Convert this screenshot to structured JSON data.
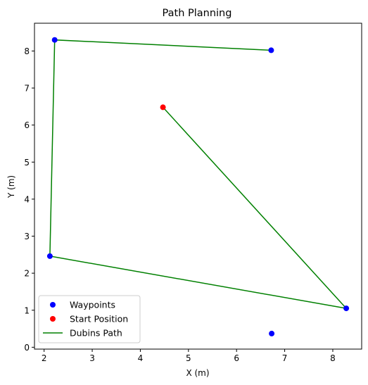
{
  "chart_data": {
    "type": "scatter",
    "title": "Path Planning",
    "xlabel": "X (m)",
    "ylabel": "Y (m)",
    "xlim": [
      1.8,
      8.6
    ],
    "ylim": [
      -0.05,
      8.75
    ],
    "xticks": [
      2,
      3,
      4,
      5,
      6,
      7,
      8
    ],
    "yticks": [
      0,
      1,
      2,
      3,
      4,
      5,
      6,
      7,
      8
    ],
    "grid": false,
    "legend_position": "lower-left",
    "series": [
      {
        "name": "Waypoints",
        "kind": "scatter",
        "color": "#0000ff",
        "points": [
          [
            2.22,
            8.3
          ],
          [
            6.72,
            8.02
          ],
          [
            2.12,
            2.46
          ],
          [
            8.28,
            1.05
          ],
          [
            6.73,
            0.37
          ]
        ]
      },
      {
        "name": "Start Position",
        "kind": "scatter",
        "color": "#ff0000",
        "points": [
          [
            4.47,
            6.48
          ]
        ]
      },
      {
        "name": "Dubins Path",
        "kind": "line",
        "color": "#008000",
        "points": [
          [
            4.47,
            6.48
          ],
          [
            8.28,
            1.05
          ],
          [
            2.12,
            2.46
          ],
          [
            2.22,
            8.3
          ],
          [
            6.72,
            8.02
          ]
        ]
      }
    ]
  }
}
